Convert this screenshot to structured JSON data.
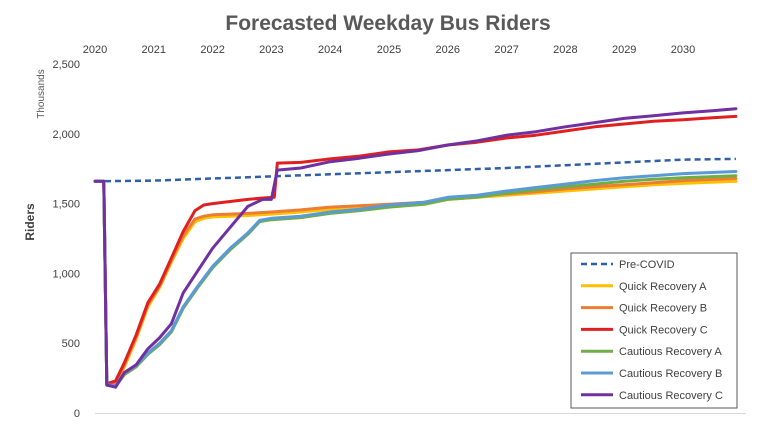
{
  "chart_data": {
    "type": "line",
    "title": "Forecasted Weekday Bus Riders",
    "ylabel": "Riders",
    "yunit_label": "Thousands",
    "xlabel": "",
    "x_ticks": [
      "2020",
      "2021",
      "2022",
      "2023",
      "2024",
      "2025",
      "2026",
      "2027",
      "2028",
      "2029",
      "2030"
    ],
    "y_ticks": [
      "0",
      "500",
      "1,000",
      "1,500",
      "2,000",
      "2,500"
    ],
    "xlim": [
      2020.0,
      2030.9
    ],
    "ylim": [
      0,
      2500
    ],
    "grid": false,
    "legend_position": "bottom-right",
    "series": [
      {
        "name": "Pre-COVID",
        "color": "#2E5FA8",
        "dashed": true,
        "points": [
          [
            2020.0,
            1660
          ],
          [
            2021.0,
            1665
          ],
          [
            2022.0,
            1680
          ],
          [
            2023.0,
            1695
          ],
          [
            2024.0,
            1710
          ],
          [
            2025.0,
            1725
          ],
          [
            2026.0,
            1740
          ],
          [
            2027.0,
            1755
          ],
          [
            2028.0,
            1775
          ],
          [
            2029.0,
            1795
          ],
          [
            2030.0,
            1815
          ],
          [
            2030.9,
            1820
          ]
        ]
      },
      {
        "name": "Quick Recovery A",
        "color": "#FFC000",
        "dashed": false,
        "points": [
          [
            2020.0,
            1660
          ],
          [
            2020.15,
            1660
          ],
          [
            2020.2,
            200
          ],
          [
            2020.35,
            210
          ],
          [
            2020.5,
            330
          ],
          [
            2020.7,
            530
          ],
          [
            2020.9,
            760
          ],
          [
            2021.1,
            900
          ],
          [
            2021.3,
            1080
          ],
          [
            2021.5,
            1250
          ],
          [
            2021.7,
            1370
          ],
          [
            2021.85,
            1395
          ],
          [
            2022.0,
            1405
          ],
          [
            2022.3,
            1410
          ],
          [
            2022.6,
            1415
          ],
          [
            2023.0,
            1425
          ],
          [
            2023.5,
            1440
          ],
          [
            2024.0,
            1460
          ],
          [
            2024.5,
            1475
          ],
          [
            2025.0,
            1485
          ],
          [
            2025.6,
            1500
          ],
          [
            2026.0,
            1530
          ],
          [
            2026.5,
            1545
          ],
          [
            2027.0,
            1560
          ],
          [
            2027.5,
            1575
          ],
          [
            2028.0,
            1590
          ],
          [
            2028.5,
            1605
          ],
          [
            2029.0,
            1620
          ],
          [
            2029.5,
            1635
          ],
          [
            2030.0,
            1645
          ],
          [
            2030.9,
            1660
          ]
        ]
      },
      {
        "name": "Quick Recovery B",
        "color": "#ED7D31",
        "dashed": false,
        "points": [
          [
            2020.0,
            1660
          ],
          [
            2020.15,
            1660
          ],
          [
            2020.2,
            205
          ],
          [
            2020.35,
            220
          ],
          [
            2020.5,
            345
          ],
          [
            2020.7,
            545
          ],
          [
            2020.9,
            775
          ],
          [
            2021.1,
            910
          ],
          [
            2021.3,
            1095
          ],
          [
            2021.5,
            1270
          ],
          [
            2021.7,
            1390
          ],
          [
            2021.85,
            1410
          ],
          [
            2022.0,
            1420
          ],
          [
            2022.3,
            1425
          ],
          [
            2022.6,
            1430
          ],
          [
            2023.0,
            1440
          ],
          [
            2023.5,
            1455
          ],
          [
            2024.0,
            1475
          ],
          [
            2024.5,
            1485
          ],
          [
            2025.0,
            1495
          ],
          [
            2025.6,
            1510
          ],
          [
            2026.0,
            1540
          ],
          [
            2026.5,
            1555
          ],
          [
            2027.0,
            1570
          ],
          [
            2027.5,
            1585
          ],
          [
            2028.0,
            1605
          ],
          [
            2028.5,
            1620
          ],
          [
            2029.0,
            1635
          ],
          [
            2029.5,
            1650
          ],
          [
            2030.0,
            1665
          ],
          [
            2030.9,
            1680
          ]
        ]
      },
      {
        "name": "Quick Recovery C",
        "color": "#E02020",
        "dashed": false,
        "points": [
          [
            2020.0,
            1660
          ],
          [
            2020.15,
            1660
          ],
          [
            2020.2,
            210
          ],
          [
            2020.35,
            230
          ],
          [
            2020.5,
            360
          ],
          [
            2020.7,
            560
          ],
          [
            2020.9,
            790
          ],
          [
            2021.1,
            925
          ],
          [
            2021.3,
            1110
          ],
          [
            2021.5,
            1300
          ],
          [
            2021.7,
            1450
          ],
          [
            2021.85,
            1490
          ],
          [
            2022.0,
            1500
          ],
          [
            2022.3,
            1515
          ],
          [
            2022.6,
            1530
          ],
          [
            2022.85,
            1540
          ],
          [
            2023.05,
            1545
          ],
          [
            2023.1,
            1790
          ],
          [
            2023.5,
            1795
          ],
          [
            2024.0,
            1820
          ],
          [
            2024.5,
            1840
          ],
          [
            2025.0,
            1870
          ],
          [
            2025.5,
            1885
          ],
          [
            2026.0,
            1920
          ],
          [
            2026.5,
            1940
          ],
          [
            2027.0,
            1970
          ],
          [
            2027.5,
            1990
          ],
          [
            2028.0,
            2020
          ],
          [
            2028.5,
            2050
          ],
          [
            2029.0,
            2070
          ],
          [
            2029.5,
            2090
          ],
          [
            2030.0,
            2100
          ],
          [
            2030.5,
            2115
          ],
          [
            2030.9,
            2125
          ]
        ]
      },
      {
        "name": "Cautious Recovery A",
        "color": "#70AD47",
        "dashed": false,
        "points": [
          [
            2020.0,
            1660
          ],
          [
            2020.15,
            1660
          ],
          [
            2020.2,
            200
          ],
          [
            2020.35,
            190
          ],
          [
            2020.5,
            275
          ],
          [
            2020.7,
            330
          ],
          [
            2020.9,
            420
          ],
          [
            2021.1,
            490
          ],
          [
            2021.3,
            580
          ],
          [
            2021.5,
            750
          ],
          [
            2021.75,
            900
          ],
          [
            2022.0,
            1040
          ],
          [
            2022.3,
            1170
          ],
          [
            2022.6,
            1280
          ],
          [
            2022.8,
            1370
          ],
          [
            2023.0,
            1385
          ],
          [
            2023.5,
            1400
          ],
          [
            2024.0,
            1430
          ],
          [
            2024.5,
            1450
          ],
          [
            2025.0,
            1475
          ],
          [
            2025.6,
            1495
          ],
          [
            2026.0,
            1530
          ],
          [
            2026.5,
            1545
          ],
          [
            2027.0,
            1575
          ],
          [
            2027.5,
            1600
          ],
          [
            2028.0,
            1620
          ],
          [
            2028.5,
            1640
          ],
          [
            2029.0,
            1660
          ],
          [
            2029.5,
            1675
          ],
          [
            2030.0,
            1685
          ],
          [
            2030.9,
            1700
          ]
        ]
      },
      {
        "name": "Cautious Recovery B",
        "color": "#5B9BD5",
        "dashed": false,
        "points": [
          [
            2020.0,
            1660
          ],
          [
            2020.15,
            1660
          ],
          [
            2020.2,
            205
          ],
          [
            2020.35,
            195
          ],
          [
            2020.5,
            285
          ],
          [
            2020.7,
            340
          ],
          [
            2020.9,
            430
          ],
          [
            2021.1,
            500
          ],
          [
            2021.3,
            590
          ],
          [
            2021.5,
            760
          ],
          [
            2021.75,
            910
          ],
          [
            2022.0,
            1050
          ],
          [
            2022.3,
            1180
          ],
          [
            2022.6,
            1290
          ],
          [
            2022.8,
            1380
          ],
          [
            2023.0,
            1395
          ],
          [
            2023.5,
            1410
          ],
          [
            2024.0,
            1440
          ],
          [
            2024.5,
            1460
          ],
          [
            2025.0,
            1490
          ],
          [
            2025.6,
            1510
          ],
          [
            2026.0,
            1545
          ],
          [
            2026.5,
            1560
          ],
          [
            2027.0,
            1590
          ],
          [
            2027.5,
            1615
          ],
          [
            2028.0,
            1640
          ],
          [
            2028.5,
            1665
          ],
          [
            2029.0,
            1685
          ],
          [
            2029.5,
            1700
          ],
          [
            2030.0,
            1715
          ],
          [
            2030.9,
            1730
          ]
        ]
      },
      {
        "name": "Cautious Recovery C",
        "color": "#7030A0",
        "dashed": false,
        "points": [
          [
            2020.0,
            1660
          ],
          [
            2020.15,
            1660
          ],
          [
            2020.2,
            200
          ],
          [
            2020.35,
            185
          ],
          [
            2020.5,
            290
          ],
          [
            2020.7,
            345
          ],
          [
            2020.9,
            460
          ],
          [
            2021.1,
            540
          ],
          [
            2021.3,
            640
          ],
          [
            2021.5,
            860
          ],
          [
            2021.75,
            1020
          ],
          [
            2022.0,
            1180
          ],
          [
            2022.3,
            1330
          ],
          [
            2022.6,
            1480
          ],
          [
            2022.85,
            1530
          ],
          [
            2023.0,
            1530
          ],
          [
            2023.1,
            1740
          ],
          [
            2023.5,
            1755
          ],
          [
            2024.0,
            1800
          ],
          [
            2024.5,
            1825
          ],
          [
            2025.0,
            1855
          ],
          [
            2025.5,
            1880
          ],
          [
            2026.0,
            1920
          ],
          [
            2026.5,
            1950
          ],
          [
            2027.0,
            1990
          ],
          [
            2027.5,
            2015
          ],
          [
            2028.0,
            2050
          ],
          [
            2028.5,
            2080
          ],
          [
            2029.0,
            2110
          ],
          [
            2029.5,
            2130
          ],
          [
            2030.0,
            2150
          ],
          [
            2030.5,
            2165
          ],
          [
            2030.9,
            2180
          ]
        ]
      }
    ]
  }
}
